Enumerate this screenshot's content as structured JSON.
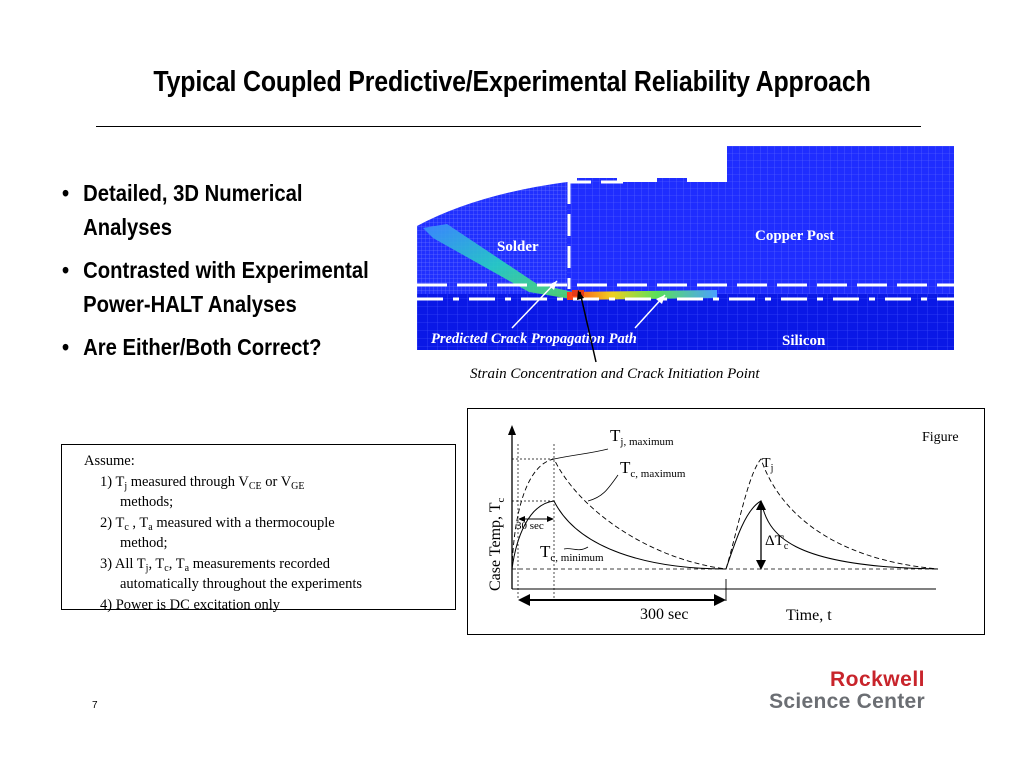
{
  "slide": {
    "title": "Typical Coupled Predictive/Experimental Reliability Approach",
    "page_number": "7"
  },
  "bullets": [
    {
      "line1": "Detailed, 3D Numerical",
      "line2": "Analyses"
    },
    {
      "line1": "Contrasted with Experimental",
      "line2": "Power-HALT Analyses"
    },
    {
      "line1": "Are Either/Both Correct?",
      "line2": ""
    }
  ],
  "simulation": {
    "labels": {
      "solder": "Solder",
      "copper_post": "Copper Post",
      "silicon": "Silicon",
      "crack_path": "Predicted Crack Propagation Path"
    },
    "caption": "Strain Concentration and Crack Initiation Point",
    "colors": {
      "mesh_blue": "#1a1aff",
      "deep_blue": "#0000c8",
      "hot": "#e53b1a",
      "label_bg": "#0000b0"
    }
  },
  "assumptions": {
    "heading": "Assume:",
    "item1": {
      "a": "1) T",
      "sub_j": "j",
      "b": " measured through V",
      "sub_ce": "CE",
      "c": " or V",
      "sub_ge": "GE",
      "d": "methods;"
    },
    "item2": {
      "a": "2) T",
      "sub_c": "c",
      "b": " , T",
      "sub_a": "a",
      "c": " measured with a thermocouple",
      "d": "method;"
    },
    "item3": {
      "a": "3) All T",
      "sub_j": "j",
      "b": ", T",
      "sub_c": "c",
      "c": ", T",
      "sub_a": "a",
      "d": " measurements recorded",
      "e": "automatically throughout the experiments"
    },
    "item4": "4) Power is DC excitation only"
  },
  "figure": {
    "tag": "Figure",
    "y_axis": {
      "a": "Case Temp, T",
      "sub": "c"
    },
    "x_axis": "Time, t",
    "interval": "300 sec",
    "short_interval": "30 sec",
    "tj_max": {
      "main": "T",
      "sub": "j, maximum"
    },
    "tc_max": {
      "main": "T",
      "sub": "c, maximum"
    },
    "tc_min": {
      "main": "T",
      "sub": "c, minimum"
    },
    "tj": {
      "main": "T",
      "sub": "j"
    },
    "delta_tc": {
      "main": "ΔT",
      "sub": "c"
    }
  },
  "logo": {
    "line1": "Rockwell",
    "line2": "Science Center",
    "colors": {
      "line1": "#c8242b",
      "line2": "#6b6e73"
    }
  }
}
